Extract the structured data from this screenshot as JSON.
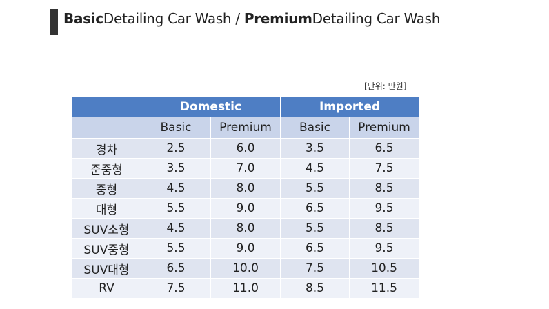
{
  "title": {
    "basic": "Basic",
    "basic_rest": "Detailing Car Wash",
    "separator": "/",
    "premium": "Premium",
    "premium_rest": "Detailing Car Wash"
  },
  "unit_note": "[단위: 만원]",
  "table": {
    "group_headers": [
      "Domestic",
      "Imported"
    ],
    "sub_headers": [
      "Basic",
      "Premium",
      "Basic",
      "Premium"
    ],
    "rows": [
      {
        "label": "경차",
        "values": [
          "2.5",
          "6.0",
          "3.5",
          "6.5"
        ]
      },
      {
        "label": "준중형",
        "values": [
          "3.5",
          "7.0",
          "4.5",
          "7.5"
        ]
      },
      {
        "label": "중형",
        "values": [
          "4.5",
          "8.0",
          "5.5",
          "8.5"
        ]
      },
      {
        "label": "대형",
        "values": [
          "5.5",
          "9.0",
          "6.5",
          "9.5"
        ]
      },
      {
        "label": "SUV소형",
        "values": [
          "4.5",
          "8.0",
          "5.5",
          "8.5"
        ]
      },
      {
        "label": "SUV중형",
        "values": [
          "5.5",
          "9.0",
          "6.5",
          "9.5"
        ]
      },
      {
        "label": "SUV대형",
        "values": [
          "6.5",
          "10.0",
          "7.5",
          "10.5"
        ]
      },
      {
        "label": "RV",
        "values": [
          "7.5",
          "11.0",
          "8.5",
          "11.5"
        ]
      }
    ]
  },
  "colors": {
    "header_blue": "#4e7ec4",
    "subheader": "#c9d4ea",
    "row_odd": "#dfe4f0",
    "row_even": "#eef1f8",
    "title_bar": "#333333"
  }
}
